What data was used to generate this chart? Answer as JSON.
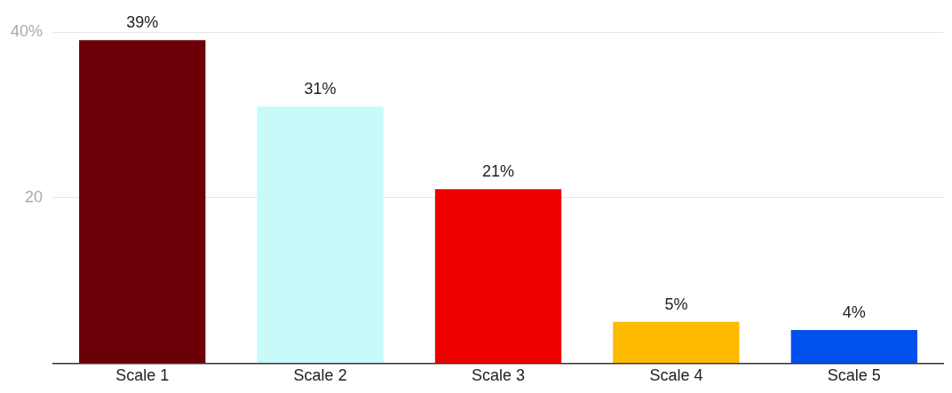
{
  "chart_data": {
    "type": "bar",
    "categories": [
      "Scale 1",
      "Scale 2",
      "Scale 3",
      "Scale 4",
      "Scale 5"
    ],
    "values": [
      39,
      31,
      21,
      5,
      4
    ],
    "colors": [
      "#6b0008",
      "#c8fafa",
      "#ee0000",
      "#ffbb00",
      "#0050ee"
    ],
    "value_labels": [
      "39%",
      "31%",
      "21%",
      "5%",
      "4%"
    ],
    "ylim": [
      0,
      40
    ],
    "yticks": [
      {
        "value": 0,
        "label": null
      },
      20,
      {
        "value": 40,
        "label": "40%"
      }
    ],
    "grid": "y",
    "legend": false
  }
}
